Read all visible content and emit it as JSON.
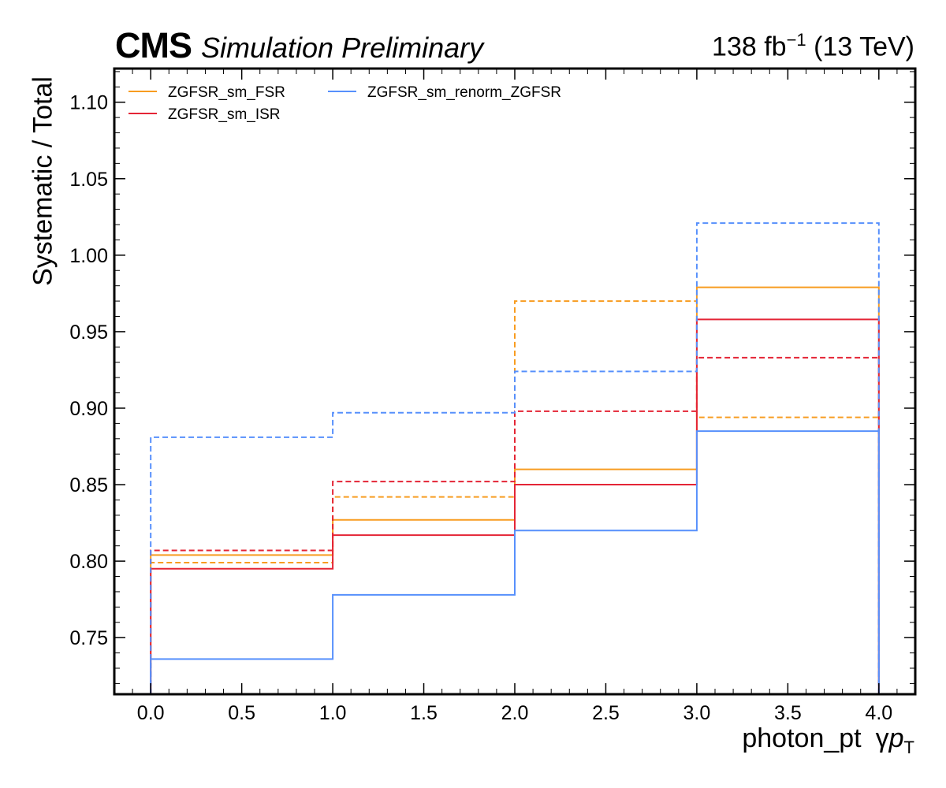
{
  "header": {
    "experiment": "CMS",
    "status": "Simulation Preliminary",
    "lumi_value": "138 fb",
    "lumi_exp": "−1",
    "energy": "(13 TeV)"
  },
  "axes": {
    "xlabel_main": "photon_pt",
    "xlabel_symbol": "γ",
    "xlabel_p": "p",
    "xlabel_sub": "T",
    "ylabel": "Systematic / Total"
  },
  "chart_data": {
    "type": "line",
    "style": "step-histogram",
    "bin_edges": [
      0,
      1,
      2,
      3,
      4
    ],
    "xlim": [
      -0.2,
      4.2
    ],
    "ylim": [
      0.713,
      1.122
    ],
    "xticks": [
      0.0,
      0.5,
      1.0,
      1.5,
      2.0,
      2.5,
      3.0,
      3.5,
      4.0
    ],
    "xtick_labels": [
      "0.0",
      "0.5",
      "1.0",
      "1.5",
      "2.0",
      "2.5",
      "3.0",
      "3.5",
      "4.0"
    ],
    "yticks": [
      0.75,
      0.8,
      0.85,
      0.9,
      0.95,
      1.0,
      1.05,
      1.1
    ],
    "ytick_labels": [
      "0.75",
      "0.80",
      "0.85",
      "0.90",
      "0.95",
      "1.00",
      "1.05",
      "1.10"
    ],
    "grid": false,
    "legend_position": "top-left",
    "series": [
      {
        "name": "ZGFSR_sm_FSR",
        "color": "#f89c20",
        "variant": "solid",
        "values": [
          0.804,
          0.827,
          0.86,
          0.979
        ]
      },
      {
        "name": "ZGFSR_sm_FSR",
        "color": "#f89c20",
        "variant": "dashed",
        "values": [
          0.799,
          0.842,
          0.97,
          0.894
        ]
      },
      {
        "name": "ZGFSR_sm_ISR",
        "color": "#e42536",
        "variant": "solid",
        "values": [
          0.795,
          0.817,
          0.85,
          0.958
        ]
      },
      {
        "name": "ZGFSR_sm_ISR",
        "color": "#e42536",
        "variant": "dashed",
        "values": [
          0.807,
          0.852,
          0.898,
          0.933
        ]
      },
      {
        "name": "ZGFSR_sm_renorm_ZGFSR",
        "color": "#5790fc",
        "variant": "solid",
        "values": [
          0.736,
          0.778,
          0.82,
          0.885
        ]
      },
      {
        "name": "ZGFSR_sm_renorm_ZGFSR",
        "color": "#5790fc",
        "variant": "dashed",
        "values": [
          0.881,
          0.897,
          0.924,
          1.021
        ]
      }
    ],
    "legend": [
      {
        "label": "ZGFSR_sm_FSR",
        "color": "#f89c20"
      },
      {
        "label": "ZGFSR_sm_ISR",
        "color": "#e42536"
      },
      {
        "label": "ZGFSR_sm_renorm_ZGFSR",
        "color": "#5790fc"
      }
    ]
  }
}
